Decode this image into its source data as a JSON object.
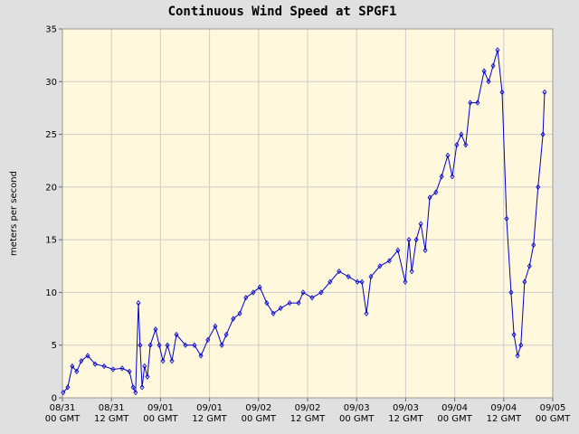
{
  "chart_data": {
    "type": "line",
    "title": "Continuous Wind Speed at SPGF1",
    "y_label": "meters per second",
    "grid": true,
    "xlim": [
      0,
      120
    ],
    "ylim": [
      0,
      35
    ],
    "yticks": [
      0,
      5,
      10,
      15,
      20,
      25,
      30,
      35
    ],
    "xticks": [
      {
        "value": 0,
        "label": "08/31 00 GMT"
      },
      {
        "value": 12,
        "label": "08/31 12 GMT"
      },
      {
        "value": 24,
        "label": "09/01 00 GMT"
      },
      {
        "value": 36,
        "label": "09/01 12 GMT"
      },
      {
        "value": 48,
        "label": "09/02 00 GMT"
      },
      {
        "value": 60,
        "label": "09/02 12 GMT"
      },
      {
        "value": 72,
        "label": "09/03 00 GMT"
      },
      {
        "value": 84,
        "label": "09/03 12 GMT"
      },
      {
        "value": 96,
        "label": "09/04 00 GMT"
      },
      {
        "value": 108,
        "label": "09/04 12 GMT"
      },
      {
        "value": 120,
        "label": "09/05 00 GMT"
      }
    ],
    "x": [
      0.2,
      1.3,
      2.4,
      3.5,
      4.6,
      6.2,
      8,
      10.2,
      12.4,
      14.6,
      16.4,
      17.3,
      17.9,
      18.6,
      19,
      19.5,
      20.1,
      20.8,
      21.5,
      22.8,
      23.7,
      24.6,
      25.7,
      26.8,
      27.9,
      30.1,
      32.3,
      33.9,
      35.6,
      37.4,
      39,
      40.1,
      41.8,
      43.4,
      44.9,
      46.7,
      48.3,
      50,
      51.6,
      53.4,
      55.6,
      57.8,
      58.9,
      61.1,
      63.3,
      65.5,
      67.7,
      70,
      72.2,
      73.3,
      74.4,
      75.5,
      77.7,
      80,
      82.1,
      83.9,
      84.8,
      85.5,
      86.6,
      87.7,
      88.8,
      89.9,
      91.4,
      92.8,
      94.3,
      95.4,
      96.5,
      97.6,
      98.7,
      99.8,
      101.6,
      103.2,
      104.3,
      105.4,
      106.5,
      107.6,
      108.7,
      109.8,
      110.5,
      111.4,
      112.2,
      113.1,
      114.3,
      115.3,
      116.4,
      117.6,
      118
    ],
    "series": [
      {
        "name": "Wind Speed",
        "color": "#0000cc",
        "values": [
          0.5,
          1,
          3,
          2.5,
          3.5,
          4,
          3.2,
          3,
          2.7,
          2.8,
          2.5,
          1,
          0.5,
          9,
          5,
          1,
          3,
          2,
          5,
          6.5,
          5,
          3.5,
          5,
          3.5,
          6,
          5,
          5,
          4,
          5.5,
          6.8,
          5,
          6,
          7.5,
          8,
          9.5,
          10,
          10.5,
          9,
          8,
          8.5,
          9,
          9,
          10,
          9.5,
          10,
          11,
          12,
          11.5,
          11,
          11,
          8,
          11.5,
          12.5,
          13,
          14,
          11,
          15,
          12,
          15,
          16.5,
          14,
          19,
          19.5,
          21,
          23,
          21,
          24,
          25,
          24,
          28,
          28,
          31,
          30,
          31.5,
          33,
          29,
          17,
          10,
          6,
          4,
          5,
          11,
          12.5,
          14.5,
          20,
          25,
          29
        ]
      }
    ]
  }
}
